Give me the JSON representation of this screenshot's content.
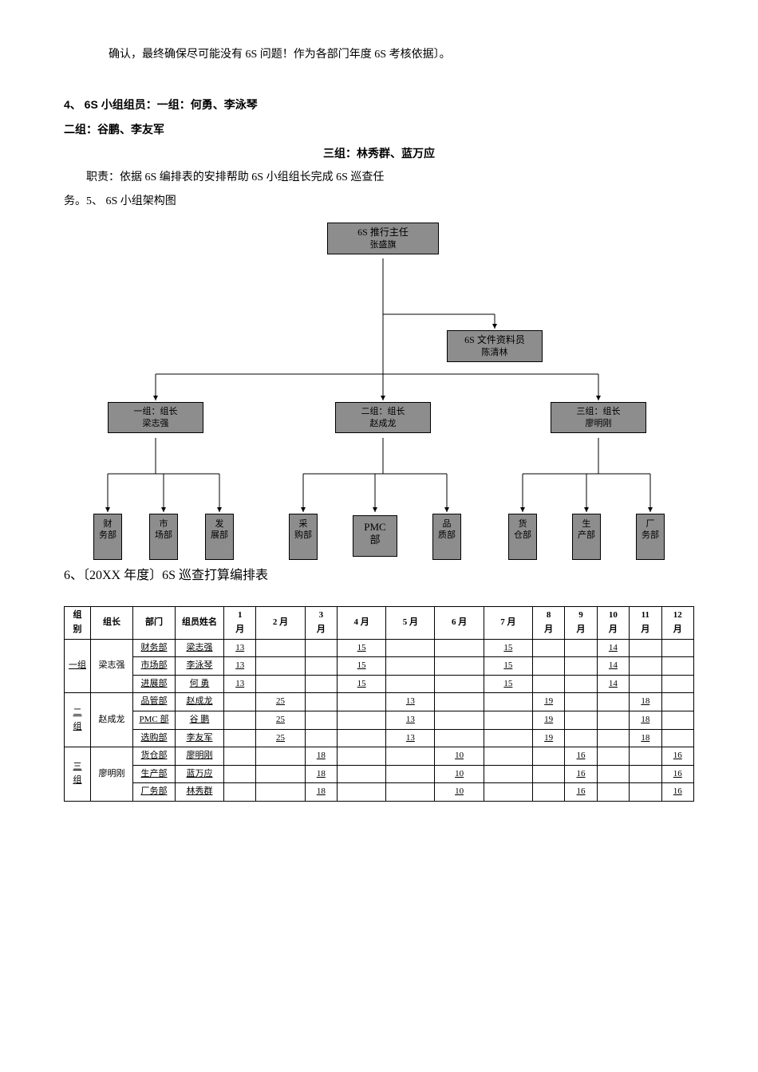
{
  "text": {
    "line1": "确认，最终确保尽可能没有 6S 问题！作为各部门年度 6S 考核依据〕。",
    "line4": "4、 6S 小组组员：一组：何勇、李泳琴",
    "line2group": "二组：谷鹏、李友军",
    "line3group": "三组：林秀群、蓝万应",
    "duty": "职责：依据 6S 编排表的安排帮助 6S 小组组长完成 6S 巡查任",
    "duty2": "务。5、 6S 小组架构图",
    "caption6": "6、〔20XX 年度〕6S 巡查打算编排表"
  },
  "org": {
    "top": {
      "title": "6S 推行主任",
      "name": "张盛旗"
    },
    "doc": {
      "title": "6S 文件资料员",
      "name": "陈清林"
    },
    "groups": [
      {
        "title": "一组：组长",
        "name": "梁志强"
      },
      {
        "title": "二组：组长",
        "name": "赵成龙"
      },
      {
        "title": "三组：组长",
        "name": "廖明刚"
      }
    ],
    "depts": [
      {
        "label": "财\n务部"
      },
      {
        "label": "市\n场部"
      },
      {
        "label": "发\n展部"
      },
      {
        "label": "采\n购部"
      },
      {
        "label": "PMC\n部",
        "wide": true
      },
      {
        "label": "品\n质部"
      },
      {
        "label": "货\n仓部"
      },
      {
        "label": "生\n产部"
      },
      {
        "label": "厂\n务部"
      }
    ],
    "colors": {
      "node_fill": "#8d8d8d"
    }
  },
  "table": {
    "headers": [
      "组\n别",
      "组长",
      "部门",
      "组员姓名",
      "1\n月",
      "2 月",
      "3\n月",
      "4 月",
      "5 月",
      "6 月",
      "7 月",
      "8\n月",
      "9\n月",
      "10\n月",
      "11\n月",
      "12\n月"
    ],
    "rows": [
      {
        "grp": "一组",
        "leader": "梁志强",
        "dept": "财务部",
        "member": "梁志强",
        "vals": [
          "13",
          "",
          "",
          "15",
          "",
          "",
          "15",
          "",
          "",
          "14",
          "",
          ""
        ]
      },
      {
        "grp": "",
        "leader": "",
        "dept": "市场部",
        "member": "李泳琴",
        "vals": [
          "13",
          "",
          "",
          "15",
          "",
          "",
          "15",
          "",
          "",
          "14",
          "",
          ""
        ]
      },
      {
        "grp": "",
        "leader": "",
        "dept": "进展部",
        "member": "何 勇",
        "vals": [
          "13",
          "",
          "",
          "15",
          "",
          "",
          "15",
          "",
          "",
          "14",
          "",
          ""
        ]
      },
      {
        "grp": "二\n组",
        "leader": "赵成龙",
        "dept": "品管部",
        "member": "赵成龙",
        "vals": [
          "",
          "25",
          "",
          "",
          "13",
          "",
          "",
          "19",
          "",
          "",
          "18",
          ""
        ]
      },
      {
        "grp": "",
        "leader": "",
        "dept": "PMC 部",
        "member": "谷 鹏",
        "vals": [
          "",
          "25",
          "",
          "",
          "13",
          "",
          "",
          "19",
          "",
          "",
          "18",
          ""
        ]
      },
      {
        "grp": "",
        "leader": "",
        "dept": "选购部",
        "member": "李友军",
        "vals": [
          "",
          "25",
          "",
          "",
          "13",
          "",
          "",
          "19",
          "",
          "",
          "18",
          ""
        ]
      },
      {
        "grp": "三\n组",
        "leader": "廖明刚",
        "dept": "货仓部",
        "member": "廖明刚",
        "vals": [
          "",
          "",
          "18",
          "",
          "",
          "10",
          "",
          "",
          "16",
          "",
          "",
          "16"
        ]
      },
      {
        "grp": "",
        "leader": "",
        "dept": "生产部",
        "member": "蓝万应",
        "vals": [
          "",
          "",
          "18",
          "",
          "",
          "10",
          "",
          "",
          "16",
          "",
          "",
          "16"
        ]
      },
      {
        "grp": "",
        "leader": "",
        "dept": "厂务部",
        "member": "林秀群",
        "vals": [
          "",
          "",
          "18",
          "",
          "",
          "10",
          "",
          "",
          "16",
          "",
          "",
          "16"
        ]
      }
    ]
  }
}
